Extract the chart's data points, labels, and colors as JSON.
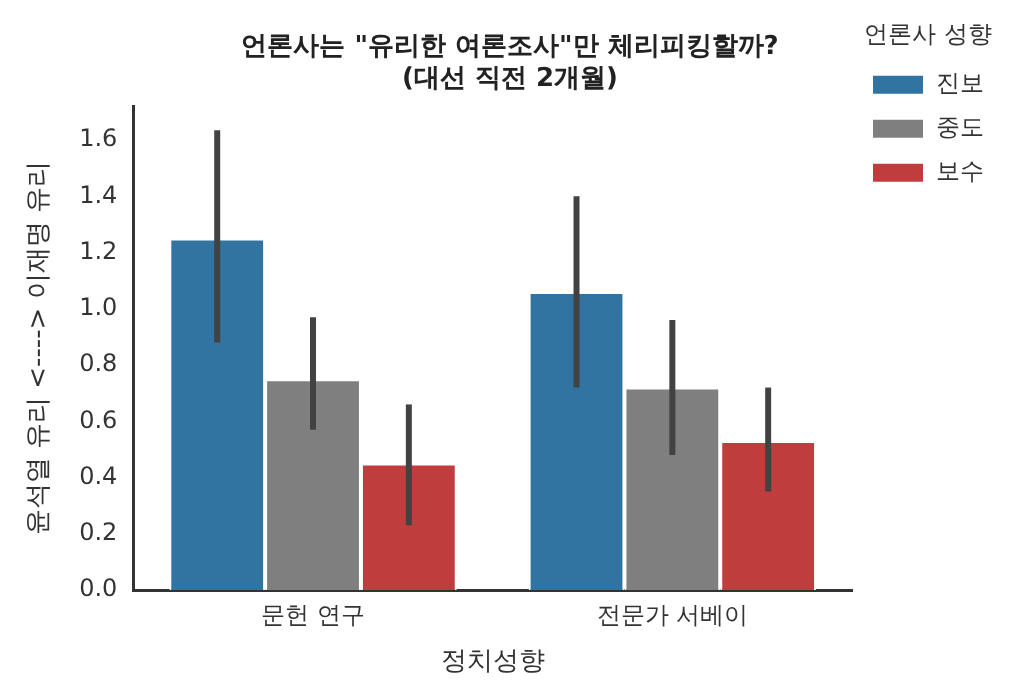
{
  "chart_data": {
    "type": "bar",
    "title": "언론사는 \"유리한 여론조사\"만 체리피킹할까?\n(대선 직전 2개월)",
    "xlabel": "정치성향",
    "ylabel": "윤석열 유리 <----> 이재명 유리",
    "legend_title": "언론사 성향",
    "categories": [
      "문헌 연구",
      "전문가 서베이"
    ],
    "series": [
      {
        "name": "진보",
        "color": "#3274a1",
        "values": [
          1.25,
          1.06
        ],
        "errors": [
          [
            0.88,
            1.635
          ],
          [
            0.72,
            1.4
          ]
        ]
      },
      {
        "name": "중도",
        "color": "#7f7f7f",
        "values": [
          0.75,
          0.72
        ],
        "errors": [
          [
            0.57,
            0.97
          ],
          [
            0.48,
            0.96
          ]
        ]
      },
      {
        "name": "보수",
        "color": "#c03d3e",
        "values": [
          0.45,
          0.53
        ],
        "errors": [
          [
            0.23,
            0.66
          ],
          [
            0.35,
            0.72
          ]
        ]
      }
    ],
    "ylim": [
      0,
      1.72
    ],
    "yticks": [
      {
        "value": 0,
        "label": "0.0"
      },
      0.2,
      0.4,
      0.6,
      0.8,
      {
        "value": 1,
        "label": "1.0"
      },
      1.2,
      1.4,
      1.6
    ],
    "grid": false,
    "legend": "top right"
  }
}
